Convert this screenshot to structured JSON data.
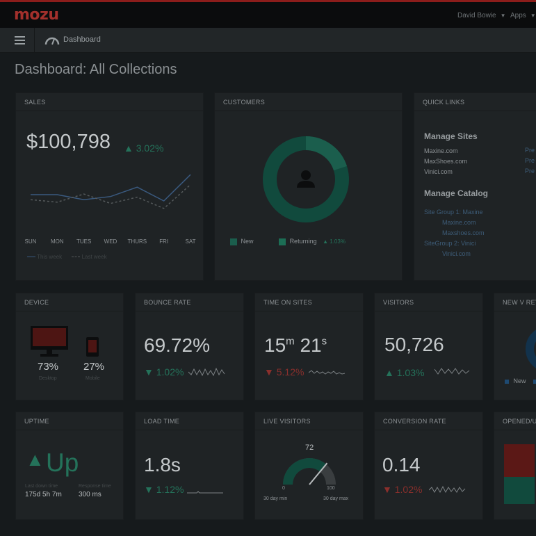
{
  "brand": {
    "logo": "mozu",
    "accent": "#8c1d1b",
    "positive": "#24725a",
    "negative": "#8a2f2c"
  },
  "header": {
    "user": "David Bowie",
    "apps": "Apps"
  },
  "subheader": {
    "icon": "speedometer-icon",
    "label": "Dashboard"
  },
  "page": {
    "title": "Dashboard: All Collections"
  },
  "sales": {
    "title": "SALES",
    "value": "$100,798",
    "change": "▲ 3.02%",
    "days": [
      "SUN",
      "MON",
      "TUES",
      "WED",
      "THURS",
      "FRI",
      "SAT"
    ],
    "legend_this": "This week",
    "legend_last": "Last week"
  },
  "chart_data": {
    "type": "line",
    "categories": [
      "SUN",
      "MON",
      "TUES",
      "WED",
      "THURS",
      "FRI",
      "SAT"
    ],
    "series": [
      {
        "name": "This week",
        "values": [
          60,
          60,
          52,
          57,
          72,
          50,
          92
        ]
      },
      {
        "name": "Last week",
        "values": [
          52,
          48,
          61,
          46,
          56,
          38,
          76
        ]
      }
    ],
    "ylim": [
      0,
      100
    ]
  },
  "customers": {
    "title": "CUSTOMERS",
    "legend_new": "New",
    "legend_returning": "Returning",
    "returning_change": "▲ 1.03%",
    "returning_fraction": 0.2,
    "icon": "user-icon"
  },
  "quicklinks": {
    "title": "QUICK LINKS",
    "sites_heading": "Manage Sites",
    "sites": [
      "Maxine.com",
      "MaxShoes.com",
      "Vinici.com"
    ],
    "site_actions": [
      "Pre",
      "Pre",
      "Pre"
    ],
    "catalog_heading": "Manage Catalog",
    "catalog": [
      "Site Group 1: Maxine",
      "Maxine.com",
      "Maxshoes.com",
      "SiteGroup 2: Vinici",
      "Vinici.com"
    ]
  },
  "device": {
    "title": "DEVICE",
    "desktop_pct": "73%",
    "desktop_label": "Desktop",
    "mobile_pct": "27%",
    "mobile_label": "Mobile"
  },
  "bounce": {
    "title": "BOUNCE RATE",
    "value": "69.72%",
    "change": "▼ 1.02%"
  },
  "time_on_sites": {
    "title": "TIME ON SITES",
    "minutes": "15",
    "m": "m",
    "seconds": "21",
    "s": "s",
    "change": "▼ 5.12%"
  },
  "visitors": {
    "title": "VISITORS",
    "value": "50,726",
    "change": "▲ 1.03%"
  },
  "new_v_returning": {
    "title": "NEW V RETU",
    "legend_new": "New"
  },
  "uptime": {
    "title": "UPTIME",
    "arrow": "▲",
    "value": "Up",
    "last_label": "Last down time",
    "last_value": "175d 5h 7m",
    "resp_label": "Response time",
    "resp_value": "300 ms"
  },
  "load_time": {
    "title": "LOAD TIME",
    "value": "1.8s",
    "change": "▼ 1.12%"
  },
  "live_visitors": {
    "title": "LIVE VISITORS",
    "value": "72",
    "min": "0",
    "max": "100",
    "min_label": "30 day min",
    "max_label": "30 day max",
    "level": 0.72
  },
  "conversion": {
    "title": "CONVERSION RATE",
    "value": "0.14",
    "change": "▼ 1.02%"
  },
  "opened": {
    "title": "OPENED/U"
  }
}
